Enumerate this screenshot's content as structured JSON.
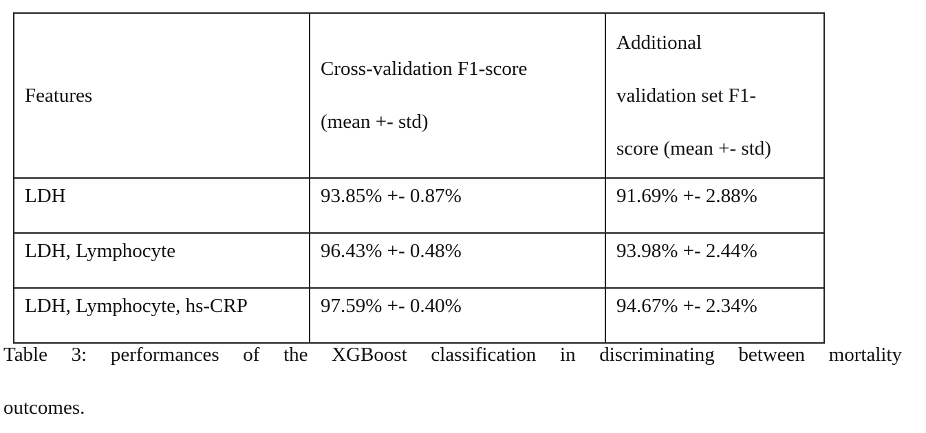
{
  "table": {
    "columns": [
      {
        "label": "Features"
      },
      {
        "label": "Cross-validation F1-score (mean +- std)",
        "label_lines": [
          "Cross-validation F1-score",
          "(mean +- std)"
        ]
      },
      {
        "label": "Additional validation set F1-score (mean +- std)",
        "label_lines": [
          "Additional",
          "validation set F1-",
          "score (mean +- std)"
        ]
      }
    ],
    "rows": [
      {
        "cells": [
          "LDH",
          "93.85% +- 0.87%",
          "91.69% +- 2.88%"
        ]
      },
      {
        "cells": [
          "LDH, Lymphocyte",
          "96.43% +- 0.48%",
          "93.98% +- 2.44%"
        ]
      },
      {
        "cells": [
          "LDH, Lymphocyte, hs-CRP",
          "97.59% +- 0.40%",
          "94.67% +- 2.34%"
        ]
      }
    ]
  },
  "caption": {
    "line1": "Table 3: performances of the XGBoost classification in discriminating between mortality",
    "line2": "outcomes."
  },
  "colors": {
    "text": "#111111",
    "border": "#222222",
    "background": "#ffffff"
  }
}
